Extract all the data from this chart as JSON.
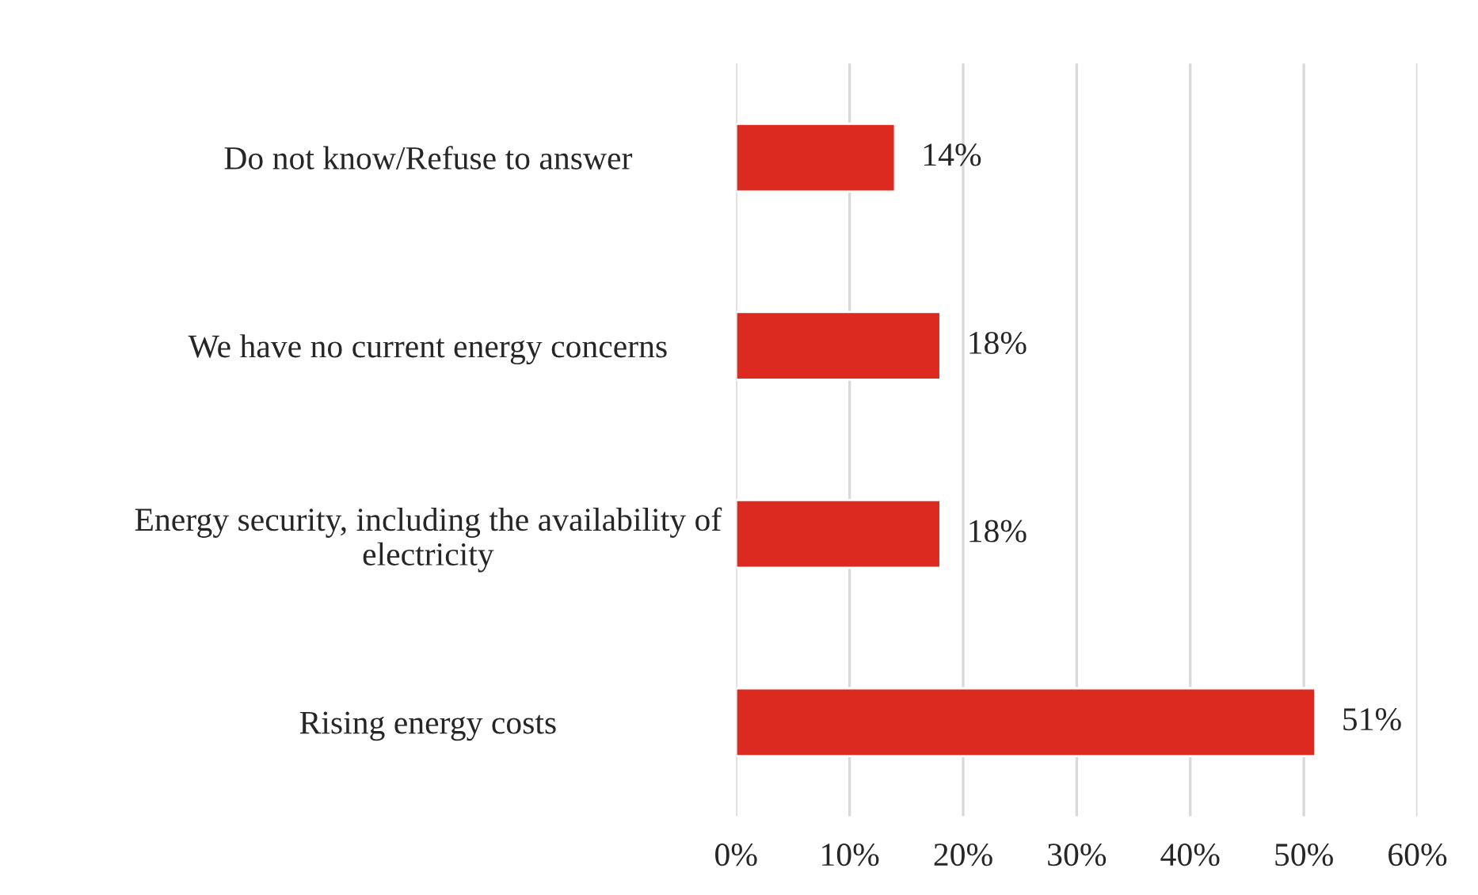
{
  "chart_data": {
    "type": "bar",
    "orientation": "horizontal",
    "categories": [
      "Do not know/Refuse to answer",
      "We have no current energy concerns",
      "Energy security, including the availability of\nelectricity",
      "Rising energy costs"
    ],
    "values": [
      14,
      18,
      18,
      51
    ],
    "value_labels": [
      "14%",
      "18%",
      "18%",
      "51%"
    ],
    "color": "#dc2a20",
    "xlim": [
      0,
      60
    ],
    "xticks": [
      {
        "value": 0,
        "label": "0%"
      },
      {
        "value": 10,
        "label": "10%"
      },
      {
        "value": 20,
        "label": "20%"
      },
      {
        "value": 30,
        "label": "30%"
      },
      {
        "value": 40,
        "label": "40%"
      },
      {
        "value": 50,
        "label": "50%"
      },
      {
        "value": 60,
        "label": "60%"
      }
    ],
    "grid": "x",
    "legend": false
  }
}
